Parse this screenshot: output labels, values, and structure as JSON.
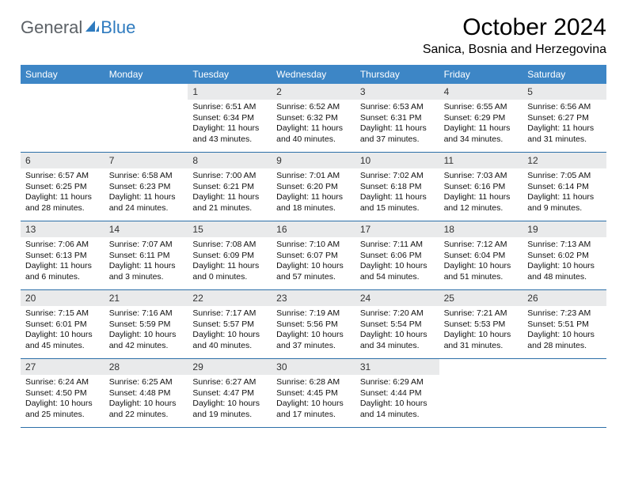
{
  "brand": {
    "word1": "General",
    "word2": "Blue"
  },
  "title": "October 2024",
  "location": "Sanica, Bosnia and Herzegovina",
  "colors": {
    "header_bg": "#3d86c6",
    "header_text": "#ffffff",
    "daynum_bg": "#e9eaeb",
    "week_border": "#2c6fa8",
    "logo_gray": "#5c6166",
    "logo_blue": "#2f7bbf",
    "page_bg": "#ffffff"
  },
  "typography": {
    "title_fontsize": 30,
    "location_fontsize": 16,
    "weekday_fontsize": 12,
    "daynum_fontsize": 12,
    "body_fontsize": 10.5
  },
  "weekdays": [
    "Sunday",
    "Monday",
    "Tuesday",
    "Wednesday",
    "Thursday",
    "Friday",
    "Saturday"
  ],
  "grid": {
    "cols": 7,
    "rows": 5,
    "leading_blanks": 2
  },
  "days": [
    {
      "n": 1,
      "sunrise": "6:51 AM",
      "sunset": "6:34 PM",
      "daylight": "11 hours and 43 minutes."
    },
    {
      "n": 2,
      "sunrise": "6:52 AM",
      "sunset": "6:32 PM",
      "daylight": "11 hours and 40 minutes."
    },
    {
      "n": 3,
      "sunrise": "6:53 AM",
      "sunset": "6:31 PM",
      "daylight": "11 hours and 37 minutes."
    },
    {
      "n": 4,
      "sunrise": "6:55 AM",
      "sunset": "6:29 PM",
      "daylight": "11 hours and 34 minutes."
    },
    {
      "n": 5,
      "sunrise": "6:56 AM",
      "sunset": "6:27 PM",
      "daylight": "11 hours and 31 minutes."
    },
    {
      "n": 6,
      "sunrise": "6:57 AM",
      "sunset": "6:25 PM",
      "daylight": "11 hours and 28 minutes."
    },
    {
      "n": 7,
      "sunrise": "6:58 AM",
      "sunset": "6:23 PM",
      "daylight": "11 hours and 24 minutes."
    },
    {
      "n": 8,
      "sunrise": "7:00 AM",
      "sunset": "6:21 PM",
      "daylight": "11 hours and 21 minutes."
    },
    {
      "n": 9,
      "sunrise": "7:01 AM",
      "sunset": "6:20 PM",
      "daylight": "11 hours and 18 minutes."
    },
    {
      "n": 10,
      "sunrise": "7:02 AM",
      "sunset": "6:18 PM",
      "daylight": "11 hours and 15 minutes."
    },
    {
      "n": 11,
      "sunrise": "7:03 AM",
      "sunset": "6:16 PM",
      "daylight": "11 hours and 12 minutes."
    },
    {
      "n": 12,
      "sunrise": "7:05 AM",
      "sunset": "6:14 PM",
      "daylight": "11 hours and 9 minutes."
    },
    {
      "n": 13,
      "sunrise": "7:06 AM",
      "sunset": "6:13 PM",
      "daylight": "11 hours and 6 minutes."
    },
    {
      "n": 14,
      "sunrise": "7:07 AM",
      "sunset": "6:11 PM",
      "daylight": "11 hours and 3 minutes."
    },
    {
      "n": 15,
      "sunrise": "7:08 AM",
      "sunset": "6:09 PM",
      "daylight": "11 hours and 0 minutes."
    },
    {
      "n": 16,
      "sunrise": "7:10 AM",
      "sunset": "6:07 PM",
      "daylight": "10 hours and 57 minutes."
    },
    {
      "n": 17,
      "sunrise": "7:11 AM",
      "sunset": "6:06 PM",
      "daylight": "10 hours and 54 minutes."
    },
    {
      "n": 18,
      "sunrise": "7:12 AM",
      "sunset": "6:04 PM",
      "daylight": "10 hours and 51 minutes."
    },
    {
      "n": 19,
      "sunrise": "7:13 AM",
      "sunset": "6:02 PM",
      "daylight": "10 hours and 48 minutes."
    },
    {
      "n": 20,
      "sunrise": "7:15 AM",
      "sunset": "6:01 PM",
      "daylight": "10 hours and 45 minutes."
    },
    {
      "n": 21,
      "sunrise": "7:16 AM",
      "sunset": "5:59 PM",
      "daylight": "10 hours and 42 minutes."
    },
    {
      "n": 22,
      "sunrise": "7:17 AM",
      "sunset": "5:57 PM",
      "daylight": "10 hours and 40 minutes."
    },
    {
      "n": 23,
      "sunrise": "7:19 AM",
      "sunset": "5:56 PM",
      "daylight": "10 hours and 37 minutes."
    },
    {
      "n": 24,
      "sunrise": "7:20 AM",
      "sunset": "5:54 PM",
      "daylight": "10 hours and 34 minutes."
    },
    {
      "n": 25,
      "sunrise": "7:21 AM",
      "sunset": "5:53 PM",
      "daylight": "10 hours and 31 minutes."
    },
    {
      "n": 26,
      "sunrise": "7:23 AM",
      "sunset": "5:51 PM",
      "daylight": "10 hours and 28 minutes."
    },
    {
      "n": 27,
      "sunrise": "6:24 AM",
      "sunset": "4:50 PM",
      "daylight": "10 hours and 25 minutes."
    },
    {
      "n": 28,
      "sunrise": "6:25 AM",
      "sunset": "4:48 PM",
      "daylight": "10 hours and 22 minutes."
    },
    {
      "n": 29,
      "sunrise": "6:27 AM",
      "sunset": "4:47 PM",
      "daylight": "10 hours and 19 minutes."
    },
    {
      "n": 30,
      "sunrise": "6:28 AM",
      "sunset": "4:45 PM",
      "daylight": "10 hours and 17 minutes."
    },
    {
      "n": 31,
      "sunrise": "6:29 AM",
      "sunset": "4:44 PM",
      "daylight": "10 hours and 14 minutes."
    }
  ],
  "labels": {
    "sunrise": "Sunrise:",
    "sunset": "Sunset:",
    "daylight": "Daylight:"
  }
}
